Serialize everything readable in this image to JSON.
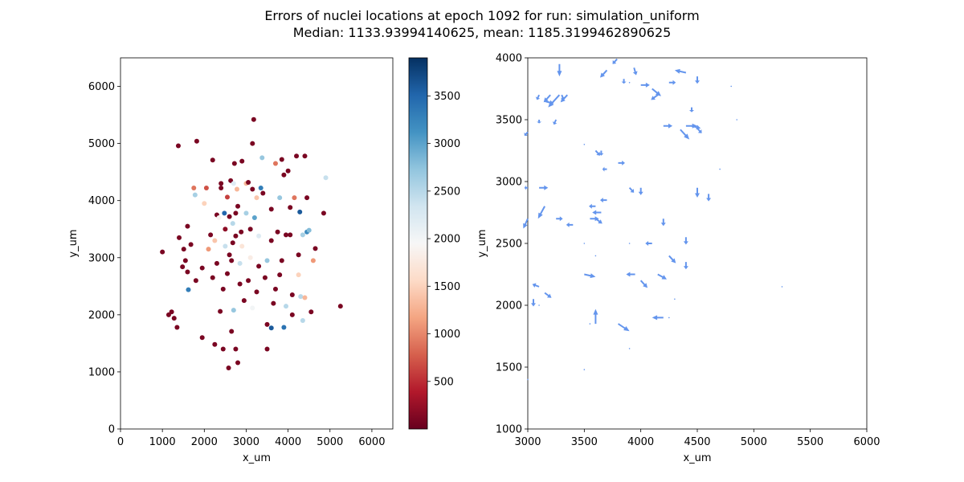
{
  "figure": {
    "title_line1": "Errors of nuclei locations at epoch 1092 for run: simulation_uniform",
    "title_line2": "Median: 1133.93994140625, mean: 1185.3199462890625"
  },
  "chart_data": [
    {
      "type": "scatter",
      "xlabel": "x_um",
      "ylabel": "y_um",
      "xlim": [
        0,
        6500
      ],
      "ylim": [
        0,
        6500
      ],
      "xticks": [
        0,
        1000,
        2000,
        3000,
        4000,
        5000,
        6000
      ],
      "yticks": [
        0,
        1000,
        2000,
        3000,
        4000,
        5000,
        6000
      ],
      "colormap": "RdBu",
      "colorbar": {
        "range": [
          0,
          3900
        ],
        "ticks": [
          500,
          1000,
          1500,
          2000,
          2500,
          3000,
          3500
        ]
      },
      "grid": false,
      "points": [
        [
          1000,
          3100,
          100
        ],
        [
          1150,
          2000,
          100
        ],
        [
          1220,
          2050,
          100
        ],
        [
          1280,
          1940,
          100
        ],
        [
          1350,
          1780,
          100
        ],
        [
          1400,
          3350,
          100
        ],
        [
          1380,
          4960,
          100
        ],
        [
          1480,
          2840,
          100
        ],
        [
          1510,
          3150,
          100
        ],
        [
          1550,
          2950,
          100
        ],
        [
          1600,
          2750,
          100
        ],
        [
          1600,
          3550,
          100
        ],
        [
          1620,
          2440,
          3300
        ],
        [
          1680,
          3230,
          100
        ],
        [
          1800,
          2600,
          100
        ],
        [
          1750,
          4220,
          900
        ],
        [
          1780,
          4100,
          2600
        ],
        [
          1820,
          5040,
          100
        ],
        [
          1950,
          2820,
          100
        ],
        [
          1950,
          1600,
          100
        ],
        [
          2000,
          3950,
          1500
        ],
        [
          2050,
          4220,
          700
        ],
        [
          2100,
          3150,
          1100
        ],
        [
          2150,
          3400,
          100
        ],
        [
          2200,
          2650,
          100
        ],
        [
          2250,
          3300,
          1400
        ],
        [
          2250,
          1480,
          100
        ],
        [
          2200,
          4710,
          100
        ],
        [
          2300,
          3750,
          100
        ],
        [
          2300,
          2900,
          100
        ],
        [
          2350,
          3700,
          1900
        ],
        [
          2380,
          2060,
          100
        ],
        [
          2400,
          4220,
          100
        ],
        [
          2400,
          4300,
          100
        ],
        [
          2450,
          2450,
          100
        ],
        [
          2450,
          1400,
          100
        ],
        [
          2480,
          3780,
          3500
        ],
        [
          2500,
          3200,
          2400
        ],
        [
          2500,
          3500,
          200
        ],
        [
          2550,
          2720,
          100
        ],
        [
          2550,
          4060,
          600
        ],
        [
          2580,
          1070,
          100
        ],
        [
          2600,
          3050,
          100
        ],
        [
          2600,
          3720,
          100
        ],
        [
          2630,
          4350,
          100
        ],
        [
          2650,
          2950,
          100
        ],
        [
          2650,
          1710,
          100
        ],
        [
          2680,
          3260,
          100
        ],
        [
          2680,
          3600,
          2500
        ],
        [
          2700,
          2080,
          2700
        ],
        [
          2700,
          4300,
          2200
        ],
        [
          2720,
          4650,
          100
        ],
        [
          2750,
          3780,
          100
        ],
        [
          2750,
          3380,
          100
        ],
        [
          2750,
          1400,
          100
        ],
        [
          2780,
          4200,
          1300
        ],
        [
          2800,
          1160,
          100
        ],
        [
          2800,
          3900,
          100
        ],
        [
          2850,
          2540,
          100
        ],
        [
          2850,
          2900,
          2400
        ],
        [
          2880,
          3450,
          100
        ],
        [
          2900,
          4690,
          100
        ],
        [
          2900,
          3200,
          1700
        ],
        [
          2950,
          2250,
          100
        ],
        [
          3000,
          4300,
          1300
        ],
        [
          3000,
          3780,
          2600
        ],
        [
          3050,
          2600,
          100
        ],
        [
          3050,
          4320,
          100
        ],
        [
          3100,
          3000,
          1800
        ],
        [
          3100,
          3500,
          100
        ],
        [
          3150,
          5000,
          100
        ],
        [
          3150,
          2120,
          2000
        ],
        [
          3150,
          4200,
          100
        ],
        [
          3180,
          5420,
          100
        ],
        [
          3200,
          3700,
          3000
        ],
        [
          3250,
          2400,
          100
        ],
        [
          3250,
          4050,
          1400
        ],
        [
          3300,
          2850,
          100
        ],
        [
          3300,
          3380,
          2200
        ],
        [
          3350,
          4220,
          3300
        ],
        [
          3380,
          4750,
          2700
        ],
        [
          3400,
          4130,
          100
        ],
        [
          3450,
          2650,
          100
        ],
        [
          3500,
          1830,
          100
        ],
        [
          3500,
          2950,
          2700
        ],
        [
          3500,
          1400,
          100
        ],
        [
          3600,
          3300,
          100
        ],
        [
          3600,
          3850,
          100
        ],
        [
          3600,
          1770,
          3600
        ],
        [
          3650,
          2200,
          100
        ],
        [
          3700,
          2450,
          100
        ],
        [
          3700,
          4650,
          900
        ],
        [
          3750,
          3450,
          100
        ],
        [
          3800,
          4050,
          2700
        ],
        [
          3800,
          2700,
          100
        ],
        [
          3850,
          4720,
          100
        ],
        [
          3850,
          2950,
          100
        ],
        [
          3900,
          4450,
          100
        ],
        [
          3900,
          1780,
          3400
        ],
        [
          3950,
          3400,
          100
        ],
        [
          3950,
          2150,
          2500
        ],
        [
          4000,
          4520,
          100
        ],
        [
          4050,
          3400,
          100
        ],
        [
          4050,
          3880,
          100
        ],
        [
          4100,
          2000,
          100
        ],
        [
          4100,
          2350,
          100
        ],
        [
          4150,
          4050,
          900
        ],
        [
          4200,
          4780,
          100
        ],
        [
          4250,
          3050,
          100
        ],
        [
          4250,
          2700,
          1500
        ],
        [
          4280,
          3800,
          3600
        ],
        [
          4300,
          2320,
          2500
        ],
        [
          4350,
          1900,
          2500
        ],
        [
          4350,
          3400,
          2600
        ],
        [
          4400,
          4780,
          100
        ],
        [
          4400,
          2300,
          1300
        ],
        [
          4450,
          3450,
          3200
        ],
        [
          4450,
          4050,
          100
        ],
        [
          4500,
          3480,
          2800
        ],
        [
          4550,
          2050,
          100
        ],
        [
          4600,
          2950,
          1100
        ],
        [
          4650,
          3160,
          100
        ],
        [
          4850,
          3780,
          100
        ],
        [
          4900,
          4400,
          2400
        ],
        [
          5250,
          2150,
          100
        ]
      ]
    },
    {
      "type": "quiver",
      "xlabel": "x_um",
      "ylabel": "y_um",
      "xlim": [
        3000,
        6000
      ],
      "ylim": [
        1000,
        4000
      ],
      "xticks": [
        3000,
        3500,
        4000,
        4500,
        5000,
        5500,
        6000
      ],
      "yticks": [
        1000,
        1500,
        2000,
        2500,
        3000,
        3500,
        4000
      ],
      "arrow_color": "#6495ed",
      "grid": false,
      "arrows": [
        [
          3280,
          3950,
          0,
          -100
        ],
        [
          3790,
          3990,
          -40,
          -40
        ],
        [
          3700,
          3900,
          -60,
          -60
        ],
        [
          3940,
          3920,
          20,
          -60
        ],
        [
          3900,
          3800,
          0,
          0
        ],
        [
          3850,
          3830,
          0,
          -40
        ],
        [
          4000,
          3780,
          80,
          0
        ],
        [
          4100,
          3750,
          80,
          -60
        ],
        [
          4150,
          3700,
          -60,
          -40
        ],
        [
          4250,
          3800,
          60,
          0
        ],
        [
          4400,
          3880,
          -100,
          20
        ],
        [
          4500,
          3850,
          0,
          -60
        ],
        [
          4800,
          3770,
          0,
          0
        ],
        [
          3280,
          3700,
          -100,
          -100
        ],
        [
          3350,
          3700,
          -60,
          -60
        ],
        [
          3200,
          3700,
          -60,
          -60
        ],
        [
          3150,
          3650,
          80,
          -20
        ],
        [
          3100,
          3700,
          -20,
          -40
        ],
        [
          3250,
          3500,
          -20,
          -40
        ],
        [
          3100,
          3500,
          0,
          -30
        ],
        [
          3000,
          3400,
          -30,
          -30
        ],
        [
          4450,
          3600,
          0,
          -40
        ],
        [
          4200,
          3450,
          80,
          0
        ],
        [
          4350,
          3420,
          80,
          -80
        ],
        [
          4400,
          3450,
          100,
          0
        ],
        [
          4450,
          3450,
          80,
          -20
        ],
        [
          4500,
          3430,
          40,
          -40
        ],
        [
          3500,
          3300,
          0,
          0
        ],
        [
          3650,
          3250,
          0,
          -40
        ],
        [
          3800,
          3150,
          60,
          0
        ],
        [
          3700,
          3100,
          -40,
          0
        ],
        [
          3600,
          3250,
          40,
          -40
        ],
        [
          3100,
          2950,
          80,
          0
        ],
        [
          3000,
          2950,
          -30,
          0
        ],
        [
          3150,
          2800,
          -60,
          -100
        ],
        [
          3250,
          2700,
          60,
          0
        ],
        [
          3400,
          2650,
          -60,
          0
        ],
        [
          3550,
          2700,
          80,
          0
        ],
        [
          3600,
          2700,
          60,
          -40
        ],
        [
          3650,
          2750,
          -80,
          0
        ],
        [
          3700,
          2850,
          -60,
          0
        ],
        [
          3600,
          2800,
          -60,
          0
        ],
        [
          3900,
          2950,
          40,
          -40
        ],
        [
          4000,
          2950,
          0,
          -60
        ],
        [
          4200,
          2700,
          0,
          -60
        ],
        [
          4400,
          2550,
          0,
          -60
        ],
        [
          4500,
          2950,
          0,
          -80
        ],
        [
          4600,
          2900,
          0,
          -60
        ],
        [
          4700,
          3100,
          0,
          0
        ],
        [
          4850,
          3500,
          0,
          0
        ],
        [
          3300,
          3700,
          20,
          -40
        ],
        [
          3000,
          2700,
          -40,
          -80
        ],
        [
          3500,
          2500,
          0,
          0
        ],
        [
          3600,
          2400,
          0,
          0
        ],
        [
          3900,
          2500,
          0,
          0
        ],
        [
          4100,
          2500,
          -60,
          0
        ],
        [
          4250,
          2400,
          60,
          -60
        ],
        [
          4400,
          2350,
          0,
          -60
        ],
        [
          3950,
          2250,
          -80,
          0
        ],
        [
          4000,
          2200,
          60,
          -60
        ],
        [
          4150,
          2250,
          80,
          -40
        ],
        [
          3500,
          2250,
          100,
          -20
        ],
        [
          3100,
          2150,
          -60,
          20
        ],
        [
          3150,
          2100,
          60,
          -40
        ],
        [
          3050,
          2050,
          0,
          -60
        ],
        [
          3100,
          2000,
          0,
          0
        ],
        [
          3600,
          1850,
          0,
          120
        ],
        [
          3800,
          1850,
          100,
          -60
        ],
        [
          4200,
          1900,
          -100,
          0
        ],
        [
          4300,
          2050,
          0,
          0
        ],
        [
          3550,
          1850,
          0,
          0
        ],
        [
          3900,
          1650,
          0,
          0
        ],
        [
          3500,
          1480,
          0,
          0
        ],
        [
          3000,
          1400,
          0,
          0
        ],
        [
          4250,
          1900,
          0,
          0
        ],
        [
          5250,
          2150,
          0,
          0
        ]
      ]
    }
  ]
}
